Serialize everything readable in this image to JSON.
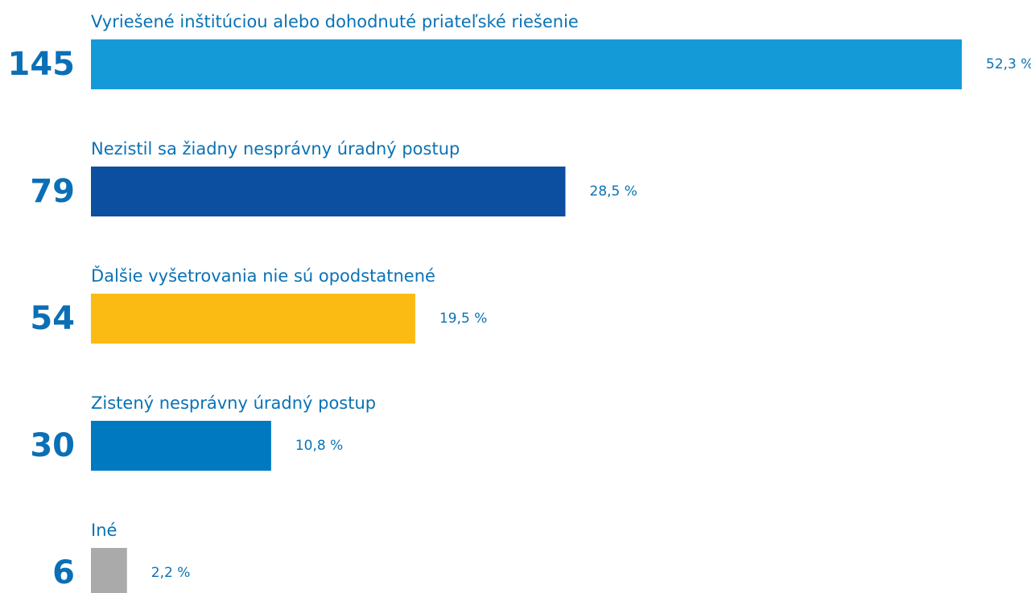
{
  "chart_data": {
    "type": "bar",
    "categories": [
      "Vyriešené inštitúciou alebo dohodnuté priateľské riešenie",
      "Nezistil sa žiadny nesprávny úradný postup",
      "Ďalšie vyšetrovania nie sú opodstatnené",
      "Zistený nesprávny úradný postup",
      "Iné"
    ],
    "values": [
      145,
      79,
      54,
      30,
      6
    ],
    "shares": [
      52.3,
      28.5,
      19.5,
      10.8,
      2.2
    ],
    "share_labels": [
      "52,3 %",
      "28,5 %",
      "19,5 %",
      "10,8 %",
      "2,2 %"
    ],
    "colors": [
      "#159ad8",
      "#0c4ea0",
      "#fbbb12",
      "#0079c1",
      "#aaaaab"
    ]
  }
}
